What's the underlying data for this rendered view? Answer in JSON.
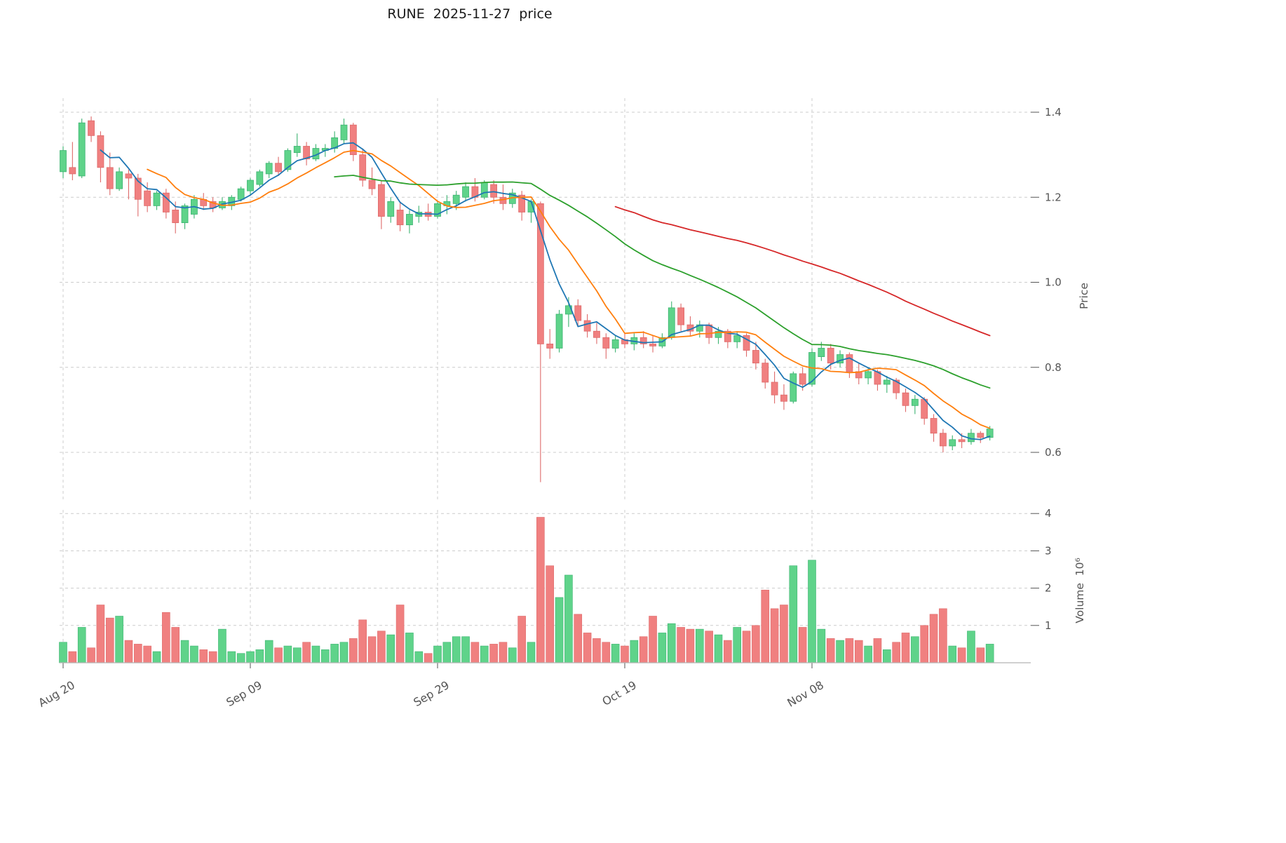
{
  "chart_data": {
    "type": "candlestick",
    "title": "RUNE  2025-11-27  price",
    "x_axis": {
      "tick_labels": [
        "Aug 20",
        "Sep 09",
        "Sep 29",
        "Oct 19",
        "Nov 08"
      ],
      "tick_indices": [
        0,
        20,
        40,
        60,
        80
      ]
    },
    "price_axis": {
      "label": "Price",
      "ticks": [
        0.6,
        0.8,
        1.0,
        1.2,
        1.4
      ],
      "range": [
        0.5,
        1.43
      ]
    },
    "volume_axis": {
      "label": "Volume  10⁶",
      "ticks": [
        1,
        2,
        3,
        4
      ],
      "unit": 1000000
    },
    "legend_position": "none",
    "grid": true,
    "dates": [
      "2025-08-20",
      "2025-08-21",
      "2025-08-22",
      "2025-08-23",
      "2025-08-24",
      "2025-08-25",
      "2025-08-26",
      "2025-08-27",
      "2025-08-28",
      "2025-08-29",
      "2025-08-30",
      "2025-08-31",
      "2025-09-01",
      "2025-09-02",
      "2025-09-03",
      "2025-09-04",
      "2025-09-05",
      "2025-09-06",
      "2025-09-07",
      "2025-09-08",
      "2025-09-09",
      "2025-09-10",
      "2025-09-11",
      "2025-09-12",
      "2025-09-13",
      "2025-09-14",
      "2025-09-15",
      "2025-09-16",
      "2025-09-17",
      "2025-09-18",
      "2025-09-19",
      "2025-09-20",
      "2025-09-21",
      "2025-09-22",
      "2025-09-23",
      "2025-09-24",
      "2025-09-25",
      "2025-09-26",
      "2025-09-27",
      "2025-09-28",
      "2025-09-29",
      "2025-09-30",
      "2025-10-01",
      "2025-10-02",
      "2025-10-03",
      "2025-10-04",
      "2025-10-05",
      "2025-10-06",
      "2025-10-07",
      "2025-10-08",
      "2025-10-09",
      "2025-10-10",
      "2025-10-11",
      "2025-10-12",
      "2025-10-13",
      "2025-10-14",
      "2025-10-15",
      "2025-10-16",
      "2025-10-17",
      "2025-10-18",
      "2025-10-19",
      "2025-10-20",
      "2025-10-21",
      "2025-10-22",
      "2025-10-23",
      "2025-10-24",
      "2025-10-25",
      "2025-10-26",
      "2025-10-27",
      "2025-10-28",
      "2025-10-29",
      "2025-10-30",
      "2025-10-31",
      "2025-11-01",
      "2025-11-02",
      "2025-11-03",
      "2025-11-04",
      "2025-11-05",
      "2025-11-06",
      "2025-11-07",
      "2025-11-08",
      "2025-11-09",
      "2025-11-10",
      "2025-11-11",
      "2025-11-12",
      "2025-11-13",
      "2025-11-14",
      "2025-11-15",
      "2025-11-16",
      "2025-11-17",
      "2025-11-18",
      "2025-11-19",
      "2025-11-20",
      "2025-11-21",
      "2025-11-22",
      "2025-11-23",
      "2025-11-24",
      "2025-11-25",
      "2025-11-26",
      "2025-11-27"
    ],
    "ohlc": {
      "open": [
        1.26,
        1.27,
        1.25,
        1.38,
        1.345,
        1.27,
        1.22,
        1.255,
        1.245,
        1.215,
        1.18,
        1.21,
        1.17,
        1.14,
        1.16,
        1.195,
        1.19,
        1.175,
        1.18,
        1.195,
        1.215,
        1.23,
        1.255,
        1.28,
        1.265,
        1.305,
        1.32,
        1.29,
        1.31,
        1.315,
        1.335,
        1.37,
        1.3,
        1.24,
        1.23,
        1.155,
        1.17,
        1.135,
        1.155,
        1.165,
        1.155,
        1.18,
        1.185,
        1.2,
        1.225,
        1.2,
        1.23,
        1.2,
        1.185,
        1.205,
        1.165,
        1.185,
        0.855,
        0.845,
        0.925,
        0.945,
        0.91,
        0.885,
        0.87,
        0.845,
        0.865,
        0.855,
        0.87,
        0.855,
        0.85,
        0.87,
        0.94,
        0.9,
        0.885,
        0.9,
        0.87,
        0.885,
        0.86,
        0.875,
        0.84,
        0.81,
        0.765,
        0.735,
        0.72,
        0.785,
        0.76,
        0.825,
        0.845,
        0.81,
        0.83,
        0.79,
        0.775,
        0.79,
        0.76,
        0.77,
        0.74,
        0.71,
        0.725,
        0.68,
        0.645,
        0.615,
        0.63,
        0.625,
        0.645,
        0.635
      ],
      "high": [
        1.32,
        1.33,
        1.385,
        1.39,
        1.355,
        1.305,
        1.27,
        1.265,
        1.255,
        1.235,
        1.215,
        1.22,
        1.19,
        1.185,
        1.205,
        1.21,
        1.2,
        1.2,
        1.205,
        1.225,
        1.245,
        1.265,
        1.285,
        1.295,
        1.315,
        1.35,
        1.33,
        1.325,
        1.325,
        1.355,
        1.385,
        1.375,
        1.315,
        1.27,
        1.24,
        1.2,
        1.19,
        1.17,
        1.18,
        1.185,
        1.19,
        1.205,
        1.215,
        1.235,
        1.245,
        1.24,
        1.24,
        1.23,
        1.22,
        1.215,
        1.195,
        1.19,
        0.89,
        0.935,
        0.965,
        0.96,
        0.925,
        0.905,
        0.88,
        0.875,
        0.88,
        0.88,
        0.885,
        0.875,
        0.88,
        0.955,
        0.95,
        0.92,
        0.91,
        0.905,
        0.895,
        0.89,
        0.885,
        0.88,
        0.86,
        0.82,
        0.79,
        0.76,
        0.79,
        0.8,
        0.845,
        0.86,
        0.855,
        0.84,
        0.835,
        0.81,
        0.8,
        0.795,
        0.78,
        0.775,
        0.75,
        0.735,
        0.73,
        0.69,
        0.655,
        0.64,
        0.645,
        0.655,
        0.65,
        0.662
      ],
      "low": [
        1.245,
        1.24,
        1.245,
        1.33,
        1.235,
        1.205,
        1.215,
        1.195,
        1.155,
        1.165,
        1.17,
        1.15,
        1.115,
        1.125,
        1.15,
        1.17,
        1.165,
        1.17,
        1.17,
        1.19,
        1.205,
        1.225,
        1.245,
        1.25,
        1.26,
        1.295,
        1.275,
        1.285,
        1.295,
        1.305,
        1.325,
        1.285,
        1.225,
        1.205,
        1.125,
        1.14,
        1.12,
        1.115,
        1.14,
        1.145,
        1.15,
        1.16,
        1.17,
        1.19,
        1.19,
        1.195,
        1.185,
        1.17,
        1.175,
        1.145,
        1.14,
        0.53,
        0.82,
        0.835,
        0.895,
        0.895,
        0.87,
        0.855,
        0.82,
        0.835,
        0.845,
        0.84,
        0.845,
        0.835,
        0.845,
        0.865,
        0.885,
        0.875,
        0.87,
        0.855,
        0.855,
        0.845,
        0.845,
        0.825,
        0.795,
        0.75,
        0.715,
        0.7,
        0.715,
        0.745,
        0.755,
        0.815,
        0.795,
        0.8,
        0.775,
        0.76,
        0.76,
        0.745,
        0.74,
        0.725,
        0.695,
        0.69,
        0.665,
        0.625,
        0.6,
        0.605,
        0.61,
        0.618,
        0.622,
        0.628
      ],
      "close": [
        1.31,
        1.255,
        1.375,
        1.345,
        1.27,
        1.22,
        1.26,
        1.245,
        1.195,
        1.18,
        1.21,
        1.165,
        1.14,
        1.18,
        1.195,
        1.18,
        1.175,
        1.19,
        1.2,
        1.22,
        1.24,
        1.26,
        1.28,
        1.26,
        1.31,
        1.32,
        1.29,
        1.315,
        1.315,
        1.34,
        1.37,
        1.3,
        1.24,
        1.22,
        1.155,
        1.19,
        1.135,
        1.16,
        1.165,
        1.155,
        1.185,
        1.19,
        1.205,
        1.225,
        1.2,
        1.235,
        1.2,
        1.185,
        1.21,
        1.165,
        1.19,
        0.855,
        0.845,
        0.925,
        0.945,
        0.91,
        0.885,
        0.87,
        0.845,
        0.865,
        0.855,
        0.87,
        0.855,
        0.85,
        0.87,
        0.94,
        0.9,
        0.885,
        0.9,
        0.87,
        0.885,
        0.86,
        0.875,
        0.84,
        0.81,
        0.765,
        0.735,
        0.72,
        0.785,
        0.76,
        0.835,
        0.845,
        0.81,
        0.83,
        0.79,
        0.775,
        0.79,
        0.76,
        0.77,
        0.74,
        0.71,
        0.725,
        0.68,
        0.645,
        0.615,
        0.63,
        0.625,
        0.645,
        0.635,
        0.655
      ]
    },
    "volume_millions": [
      0.55,
      0.3,
      0.95,
      0.4,
      1.55,
      1.2,
      1.25,
      0.6,
      0.5,
      0.45,
      0.3,
      1.35,
      0.95,
      0.6,
      0.45,
      0.35,
      0.3,
      0.9,
      0.3,
      0.25,
      0.3,
      0.35,
      0.6,
      0.4,
      0.45,
      0.4,
      0.55,
      0.45,
      0.35,
      0.5,
      0.55,
      0.65,
      1.15,
      0.7,
      0.85,
      0.75,
      1.55,
      0.8,
      0.3,
      0.25,
      0.45,
      0.55,
      0.7,
      0.7,
      0.55,
      0.45,
      0.5,
      0.55,
      0.4,
      1.25,
      0.55,
      3.9,
      2.6,
      1.75,
      2.35,
      1.3,
      0.8,
      0.65,
      0.55,
      0.5,
      0.45,
      0.6,
      0.7,
      1.25,
      0.8,
      1.05,
      0.95,
      0.9,
      0.9,
      0.85,
      0.75,
      0.6,
      0.95,
      0.85,
      1.0,
      1.95,
      1.45,
      1.55,
      2.6,
      0.95,
      2.75,
      0.9,
      0.65,
      0.6,
      0.65,
      0.6,
      0.45,
      0.65,
      0.35,
      0.55,
      0.8,
      0.7,
      1.0,
      1.3,
      1.45,
      0.45,
      0.4,
      0.85,
      0.4,
      0.5
    ],
    "moving_averages": [
      {
        "name": "MA5",
        "window": 5,
        "color": "#1f77b4"
      },
      {
        "name": "MA10",
        "window": 10,
        "color": "#ff7f0e"
      },
      {
        "name": "MA30",
        "window": 30,
        "color": "#2ca02c"
      },
      {
        "name": "MA60",
        "window": 60,
        "color": "#d62728"
      }
    ],
    "colors": {
      "up": "#5fd38a",
      "up_edge": "#3cb371",
      "down": "#f08080",
      "down_edge": "#de6a6a",
      "grid": "#cccccc",
      "tick_text": "#555555",
      "title_text": "#1a1a1a",
      "axis_line": "#b5b5b5"
    }
  }
}
